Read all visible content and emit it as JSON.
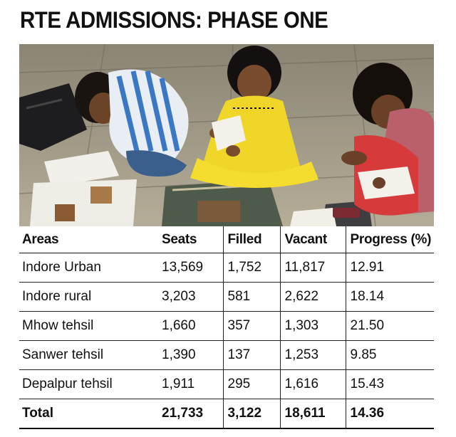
{
  "headline": "RTE ADMISSIONS: PHASE ONE",
  "table": {
    "headers": [
      "Areas",
      "Seats",
      "Filled",
      "Vacant",
      "Progress (%)"
    ],
    "rows": [
      [
        "Indore Urban",
        "13,569",
        "1,752",
        "11,817",
        "12.91"
      ],
      [
        "Indore rural",
        "3,203",
        "581",
        "2,622",
        "18.14"
      ],
      [
        "Mhow tehsil",
        "1,660",
        "357",
        "1,303",
        "21.50"
      ],
      [
        "Sanwer tehsil",
        "1,390",
        "137",
        "1,253",
        "9.85"
      ],
      [
        "Depalpur tehsil",
        "1,911",
        "295",
        "1,616",
        "15.43"
      ]
    ],
    "total": [
      "Total",
      "21,733",
      "3,122",
      "18,611",
      "14.36"
    ]
  }
}
